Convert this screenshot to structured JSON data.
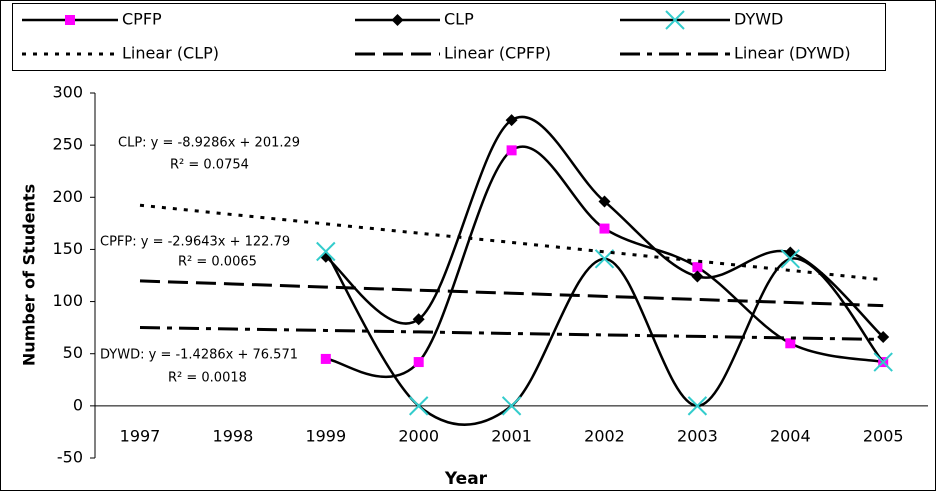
{
  "chart_data": {
    "type": "line",
    "x_label": "Year",
    "y_label": "Number of Students",
    "categories": [
      "1997",
      "1998",
      "1999",
      "2000",
      "2001",
      "2002",
      "2003",
      "2004",
      "2005"
    ],
    "ylim": [
      -50,
      300
    ],
    "yticks": [
      -50,
      0,
      50,
      100,
      150,
      200,
      250,
      300
    ],
    "smooth": true,
    "series": [
      {
        "name": "CPFP",
        "color": "#ff00ff",
        "marker": "square",
        "values": [
          null,
          null,
          45,
          42,
          245,
          170,
          133,
          60,
          42
        ]
      },
      {
        "name": "CLP",
        "color": "#000000",
        "marker": "diamond",
        "values": [
          null,
          null,
          143,
          83,
          274,
          196,
          124,
          147,
          66
        ]
      },
      {
        "name": "DYWD",
        "color": "#33cccc",
        "marker": "x",
        "values": [
          null,
          null,
          148,
          0,
          0,
          141,
          0,
          141,
          42
        ]
      },
      {
        "name": "Linear (CLP)",
        "color": "#000000",
        "style": "dotted",
        "values": [
          192.4,
          183.4,
          174.5,
          165.6,
          156.7,
          147.7,
          138.8,
          129.9,
          120.9
        ]
      },
      {
        "name": "Linear (CPFP)",
        "color": "#000000",
        "style": "dashed",
        "values": [
          119.8,
          116.9,
          113.9,
          110.9,
          108.0,
          105.0,
          102.0,
          99.1,
          96.1
        ]
      },
      {
        "name": "Linear (DYWD)",
        "color": "#000000",
        "style": "dash-dot",
        "values": [
          75.1,
          73.7,
          72.3,
          70.9,
          69.4,
          68.0,
          66.6,
          65.1,
          63.7
        ]
      }
    ],
    "annotations": [
      "CLP: y = -8.9286x + 201.29",
      "R² = 0.0754",
      "CPFP: y = -2.9643x + 122.79",
      "R² = 0.0065",
      "DYWD: y = -1.4286x + 76.571",
      "R² = 0.0018"
    ]
  }
}
